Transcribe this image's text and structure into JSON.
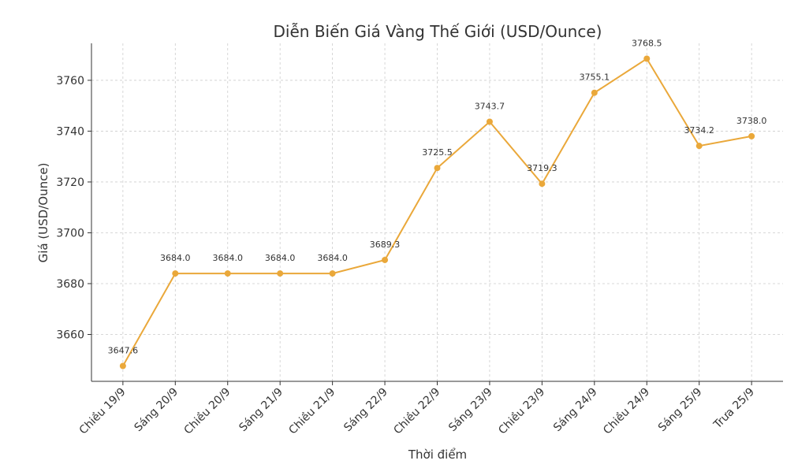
{
  "chart_data": {
    "type": "line",
    "title": "Diễn Biến Giá Vàng Thế Giới (USD/Ounce)",
    "x_label": "Thời điểm",
    "y_label": "Giá (USD/Ounce)",
    "categories": [
      "Chiều 19/9",
      "Sáng 20/9",
      "Chiều 20/9",
      "Sáng 21/9",
      "Chiều 21/9",
      "Sáng 22/9",
      "Chiều 22/9",
      "Sáng 23/9",
      "Chiều 23/9",
      "Sáng 24/9",
      "Chiều 24/9",
      "Sáng 25/9",
      "Trưa 25/9"
    ],
    "values": [
      3647.6,
      3684,
      3684,
      3684,
      3684,
      3689.3,
      3725.5,
      3743.7,
      3719.3,
      3755.1,
      3768.5,
      3734.2,
      3738
    ],
    "value_labels": [
      "3647.6",
      "3684.0",
      "3684.0",
      "3684.0",
      "3684.0",
      "3689.3",
      "3725.5",
      "3743.7",
      "3719.3",
      "3755.1",
      "3768.5",
      "3734.2",
      "3738.0"
    ],
    "color": "#eaa83a",
    "ylim": [
      3641.555,
      3774.545
    ],
    "yticks": [
      3660,
      3680,
      3700,
      3720,
      3740,
      3760
    ],
    "grid": true
  }
}
